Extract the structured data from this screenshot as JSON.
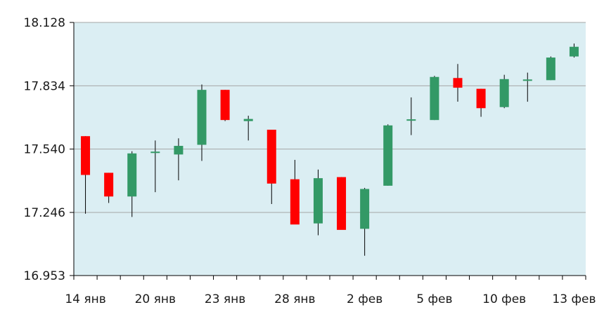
{
  "chart_data": {
    "type": "candlestick",
    "title": "",
    "xlabel": "",
    "ylabel": "",
    "ylim": [
      16.953,
      18.128
    ],
    "y_ticks": [
      "18.128",
      "17.834",
      "17.540",
      "17.246",
      "16.953"
    ],
    "y_tick_values": [
      18.128,
      17.834,
      17.54,
      17.246,
      16.953
    ],
    "x_tick_labels": [
      "14 янв",
      "20 янв",
      "23 янв",
      "28 янв",
      "2 фев",
      "5 фев",
      "10 фев",
      "13 фев"
    ],
    "x_tick_positions": [
      1,
      4,
      7,
      10,
      13,
      16,
      19,
      22
    ],
    "grid": true,
    "colors": {
      "plot_background": "#dbeef3",
      "up": "#339966",
      "down": "#ff0000",
      "wick": "#000000",
      "grid": "#a6a6a6",
      "axis": "#000000"
    },
    "candles": [
      {
        "open": 17.6,
        "high": 17.6,
        "low": 17.24,
        "close": 17.42
      },
      {
        "open": 17.43,
        "high": 17.43,
        "low": 17.29,
        "close": 17.32
      },
      {
        "open": 17.32,
        "high": 17.53,
        "low": 17.225,
        "close": 17.52
      },
      {
        "open": 17.525,
        "high": 17.58,
        "low": 17.34,
        "close": 17.525
      },
      {
        "open": 17.515,
        "high": 17.59,
        "low": 17.395,
        "close": 17.555
      },
      {
        "open": 17.56,
        "high": 17.84,
        "low": 17.485,
        "close": 17.815
      },
      {
        "open": 17.815,
        "high": 17.815,
        "low": 17.67,
        "close": 17.675
      },
      {
        "open": 17.67,
        "high": 17.695,
        "low": 17.58,
        "close": 17.68
      },
      {
        "open": 17.63,
        "high": 17.63,
        "low": 17.285,
        "close": 17.38
      },
      {
        "open": 17.4,
        "high": 17.49,
        "low": 17.195,
        "close": 17.19
      },
      {
        "open": 17.195,
        "high": 17.445,
        "low": 17.14,
        "close": 17.405
      },
      {
        "open": 17.41,
        "high": 17.41,
        "low": 17.17,
        "close": 17.165
      },
      {
        "open": 17.17,
        "high": 17.36,
        "low": 17.045,
        "close": 17.355
      },
      {
        "open": 17.37,
        "high": 17.655,
        "low": 17.37,
        "close": 17.65
      },
      {
        "open": 17.67,
        "high": 17.78,
        "low": 17.605,
        "close": 17.675
      },
      {
        "open": 17.675,
        "high": 17.88,
        "low": 17.675,
        "close": 17.875
      },
      {
        "open": 17.87,
        "high": 17.935,
        "low": 17.76,
        "close": 17.825
      },
      {
        "open": 17.82,
        "high": 17.82,
        "low": 17.69,
        "close": 17.73
      },
      {
        "open": 17.735,
        "high": 17.885,
        "low": 17.73,
        "close": 17.865
      },
      {
        "open": 17.86,
        "high": 17.895,
        "low": 17.76,
        "close": 17.86
      },
      {
        "open": 17.86,
        "high": 17.97,
        "low": 17.86,
        "close": 17.965
      },
      {
        "open": 17.97,
        "high": 18.03,
        "low": 17.965,
        "close": 18.015
      }
    ]
  }
}
